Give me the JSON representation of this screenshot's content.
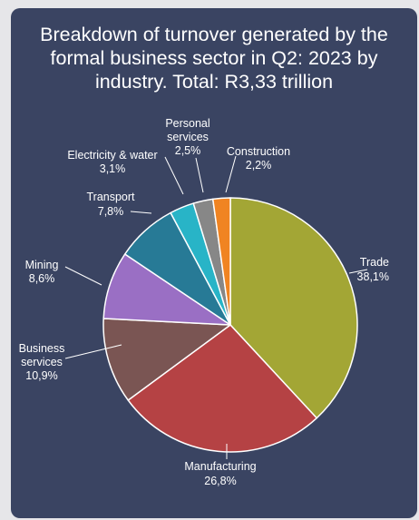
{
  "chart_data": {
    "type": "pie",
    "title_lines": [
      "Breakdown of turnover generated by the",
      "formal business sector in Q2: 2023 by",
      "industry. Total: R3,33 trillion"
    ],
    "slices": [
      {
        "name": "Trade",
        "value": 38.1,
        "label": "38,1%",
        "color": "#a3a635"
      },
      {
        "name": "Manufacturing",
        "value": 26.8,
        "label": "26,8%",
        "color": "#b54244"
      },
      {
        "name": "Business services",
        "value": 10.9,
        "label": "10,9%",
        "color": "#7a5553"
      },
      {
        "name": "Mining",
        "value": 8.6,
        "label": "8,6%",
        "color": "#9a6fc4"
      },
      {
        "name": "Transport",
        "value": 7.8,
        "label": "7,8%",
        "color": "#277a96"
      },
      {
        "name": "Electricity & water",
        "value": 3.1,
        "label": "3,1%",
        "color": "#28b4c7"
      },
      {
        "name": "Personal services",
        "value": 2.5,
        "label": "2,5%",
        "color": "#878787"
      },
      {
        "name": "Construction",
        "value": 2.2,
        "label": "2,2%",
        "color": "#f08422"
      }
    ]
  }
}
